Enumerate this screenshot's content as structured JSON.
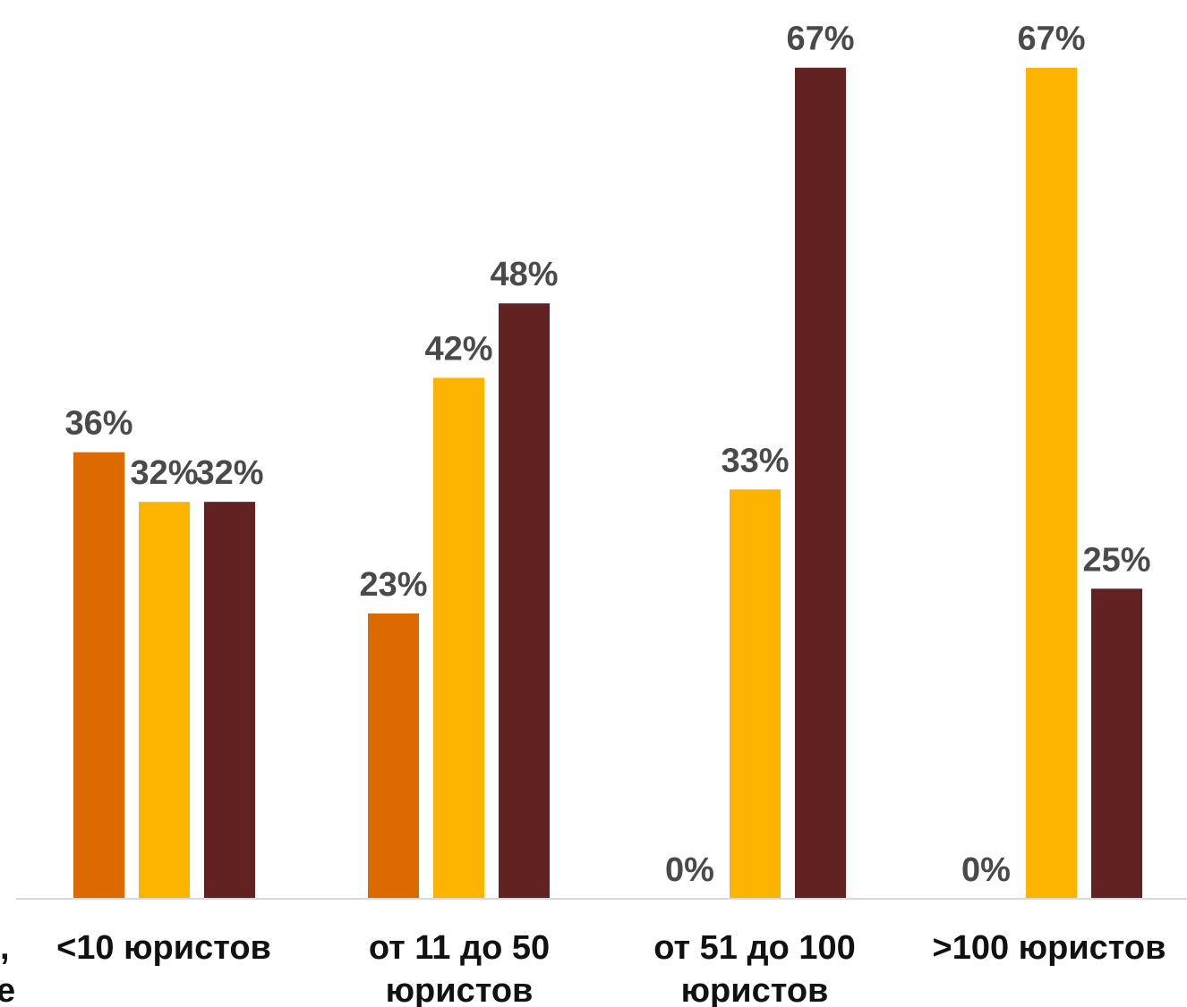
{
  "colors": {
    "series_1": "#dd6a00",
    "series_2": "#fdb400",
    "series_3": "#622222",
    "axis": "#d9d9d9",
    "value_label": "#4a4a4a",
    "category_label": "#111111"
  },
  "edge_text": {
    "line_1": ",",
    "line_2": "е"
  },
  "chart_data": {
    "type": "bar",
    "title": "",
    "xlabel": "",
    "ylabel": "",
    "ylim": [
      0,
      70
    ],
    "grid": false,
    "legend": "none",
    "categories": [
      [
        "<10 юристов"
      ],
      [
        "от 11 до 50",
        "юристов"
      ],
      [
        "от 51 до 100",
        "юристов"
      ],
      [
        ">100 юристов"
      ]
    ],
    "series": [
      {
        "color": "#dd6a00",
        "values": [
          36,
          23,
          0,
          0
        ],
        "labels": [
          "36%",
          "23%",
          "0%",
          "0%"
        ]
      },
      {
        "color": "#fdb400",
        "values": [
          32,
          42,
          33,
          67
        ],
        "labels": [
          "32%",
          "42%",
          "33%",
          "67%"
        ]
      },
      {
        "color": "#622222",
        "values": [
          32,
          48,
          67,
          25
        ],
        "labels": [
          "32%",
          "48%",
          "67%",
          "25%"
        ]
      }
    ]
  }
}
